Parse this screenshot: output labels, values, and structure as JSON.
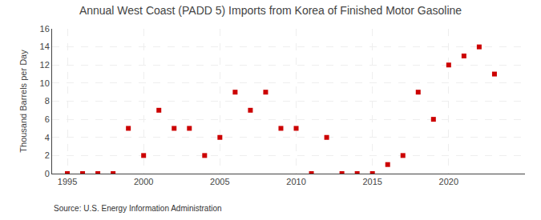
{
  "chart_data": {
    "type": "scatter",
    "title": "Annual West Coast (PADD 5) Imports from Korea of Finished Motor Gasoline",
    "ylabel": "Thousand Barrels per Day",
    "annotations": [
      "Source: U.S. Energy Information Administration"
    ],
    "x": [
      1995,
      1996,
      1997,
      1998,
      1999,
      2000,
      2001,
      2002,
      2003,
      2004,
      2005,
      2006,
      2007,
      2008,
      2009,
      2010,
      2011,
      2012,
      2013,
      2014,
      2015,
      2016,
      2017,
      2018,
      2019,
      2020,
      2021,
      2022,
      2023
    ],
    "values": [
      0,
      0,
      0,
      0,
      5,
      2,
      7,
      5,
      5,
      2,
      4,
      9,
      7,
      9,
      5,
      5,
      0,
      4,
      0,
      0,
      0,
      1,
      2,
      9,
      6,
      12,
      13,
      14,
      11
    ],
    "color": "#cc0000",
    "marker": "square",
    "xlim": [
      1994,
      2025
    ],
    "xticks": [
      1995,
      2000,
      2005,
      2010,
      2015,
      2020
    ],
    "ylim": [
      0,
      16
    ],
    "yticks": [
      0,
      2,
      4,
      6,
      8,
      10,
      12,
      14,
      16
    ],
    "grid": true
  }
}
